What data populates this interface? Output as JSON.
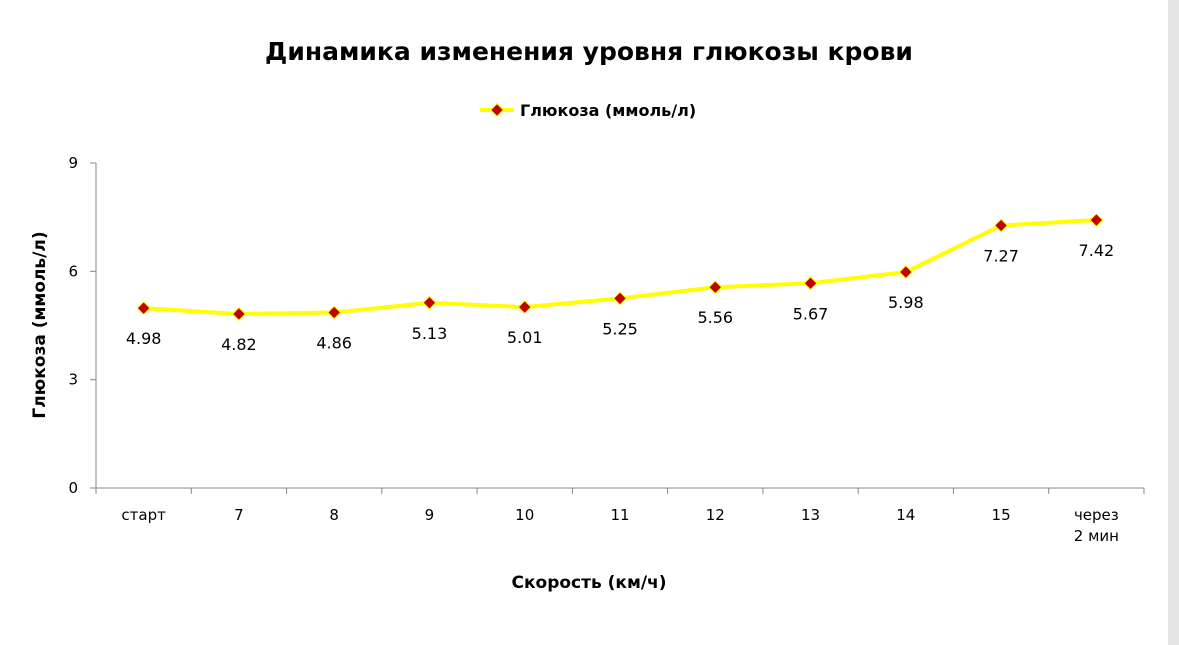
{
  "chart_data": {
    "type": "line",
    "title": "Динамика изменения уровня глюкозы крови",
    "xlabel": "Скорость (км/ч)",
    "ylabel": "Глюкоза (ммоль/л)",
    "categories": [
      "старт",
      "7",
      "8",
      "9",
      "10",
      "11",
      "12",
      "13",
      "14",
      "15",
      "через 2 мин"
    ],
    "series": [
      {
        "name": "Глюкоза (ммоль/л)",
        "values": [
          4.98,
          4.82,
          4.86,
          5.13,
          5.01,
          5.25,
          5.56,
          5.67,
          5.98,
          7.27,
          7.42
        ],
        "data_labels": [
          "4.98",
          "4.82",
          "4.86",
          "5.13",
          "5.01",
          "5.25",
          "5.56",
          "5.67",
          "5.98",
          "7.27",
          "7.42"
        ]
      }
    ],
    "ylim": [
      0,
      9
    ],
    "yticks": [
      "0",
      "3",
      "6",
      "9"
    ],
    "grid": false,
    "legend": "top",
    "colors": {
      "line": "#ffff00",
      "marker": "#c00000",
      "axis": "#888888"
    }
  }
}
